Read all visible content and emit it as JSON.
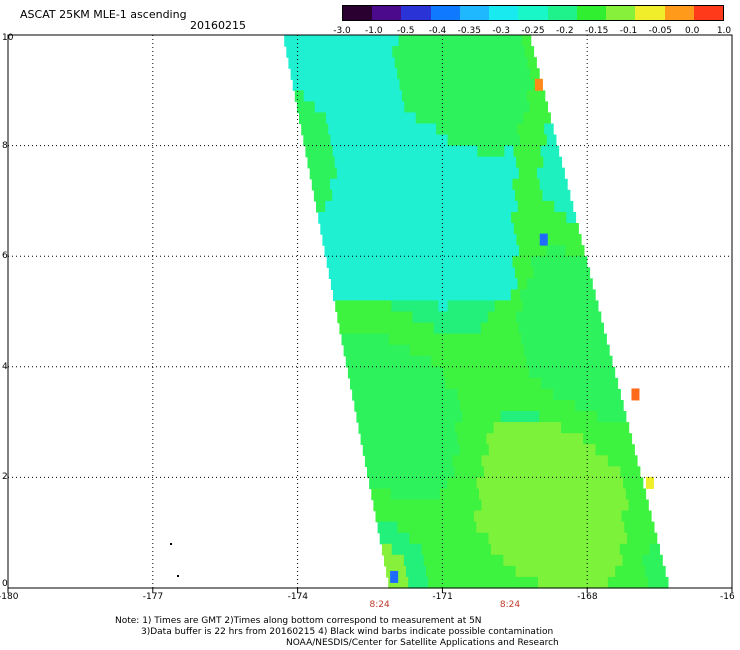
{
  "header": {
    "title": "ASCAT 25KM MLE-1 ascending",
    "date": "20160215"
  },
  "colorbar": {
    "labels": [
      "-3.0",
      "-1.0",
      "-0.5",
      "-0.4",
      "-0.35",
      "-0.3",
      "-0.25",
      "-0.2",
      "-0.15",
      "-0.1",
      "-0.05",
      "0.0",
      "1.0"
    ],
    "colors": [
      "#2a0030",
      "#4b0a8c",
      "#2a33d6",
      "#0f79ff",
      "#1fb8ff",
      "#19eaf0",
      "#19f7c8",
      "#1ff28a",
      "#30ef30",
      "#86f03a",
      "#f0ee2a",
      "#ff9a1a",
      "#ff3a1a"
    ]
  },
  "chart_data": {
    "type": "heatmap",
    "title": "ASCAT 25KM MLE-1 ascending",
    "x_ticks": [
      "-180",
      "-177",
      "-174",
      "-171",
      "-168",
      "-16"
    ],
    "y_ticks": [
      "0",
      "2",
      "4",
      "6",
      "8",
      "10"
    ],
    "xlim": [
      -180,
      -165
    ],
    "ylim": [
      0,
      10
    ],
    "grid": true,
    "time_labels": [
      {
        "lon": -172.3,
        "label": "8:24"
      },
      {
        "lon": -169.6,
        "label": "8:24"
      }
    ],
    "swath": {
      "top_lat": 10,
      "bottom_lat": 0,
      "top_lon_range": [
        -174.3,
        -169.2
      ],
      "bottom_lon_range": [
        -172.1,
        -166.3
      ]
    },
    "dominant_value_range": [
      -0.25,
      -0.15
    ],
    "hotspots": [
      {
        "lon": -169.0,
        "lat": 9.1,
        "value": 0.0
      },
      {
        "lon": -167.0,
        "lat": 3.5,
        "value": -0.05
      },
      {
        "lon": -168.9,
        "lat": 6.3,
        "value": -0.4
      },
      {
        "lon": -172.0,
        "lat": 0.2,
        "value": -0.4
      },
      {
        "lon": -166.7,
        "lat": 1.9,
        "value": -0.1
      }
    ]
  },
  "notes": {
    "line1": "Note: 1) Times are GMT 2)Times along bottom correspond to measurement at 5N",
    "line2": "3)Data buffer is 22 hrs from 20160215 4) Black wind barbs indicate possible contamination",
    "line3": "NOAA/NESDIS/Center for Satellite Applications and Research"
  }
}
